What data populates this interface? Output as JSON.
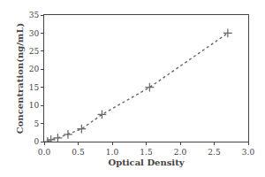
{
  "chart_data": {
    "type": "line",
    "xlabel": "Optical Density",
    "ylabel": "Concentration(ng/mL)",
    "x": [
      0.05,
      0.1,
      0.2,
      0.35,
      0.55,
      0.85,
      1.55,
      2.7
    ],
    "values": [
      0.0,
      0.5,
      1.0,
      2.0,
      3.5,
      7.5,
      15.0,
      30.0
    ],
    "color": "#666666",
    "marker": "plus",
    "line_style": "dotted",
    "xlim": [
      0,
      3
    ],
    "ylim": [
      0,
      35
    ],
    "xticks": [
      {
        "value": 0,
        "label": "0.0"
      },
      0.5,
      {
        "value": 1,
        "label": "1.0"
      },
      1.5,
      {
        "value": 2,
        "label": "2.0"
      },
      2.5,
      {
        "value": 3,
        "label": "3.0"
      }
    ],
    "yticks": [
      0,
      5,
      10,
      15,
      20,
      25,
      30,
      35
    ],
    "grid": false
  }
}
